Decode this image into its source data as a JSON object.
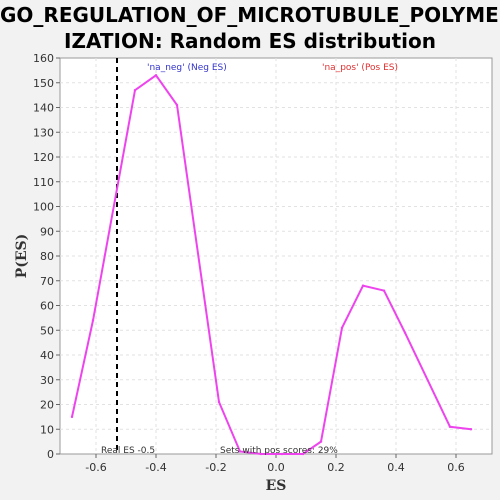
{
  "chart_data": {
    "type": "line",
    "title_line1": "GO_REGULATION_OF_MICROTUBULE_POLYMER",
    "title_line2": "IZATION: Random ES distribution",
    "xlabel": "ES",
    "ylabel": "P(ES)",
    "xlim": [
      -0.72,
      0.72
    ],
    "ylim": [
      0,
      160
    ],
    "xticks": [
      -0.6,
      -0.4,
      -0.2,
      0.0,
      0.2,
      0.4,
      0.6
    ],
    "xtick_labels": [
      "-0.6",
      "-0.4",
      "-0.2",
      "0.0",
      "0.2",
      "0.4",
      "0.6"
    ],
    "yticks": [
      0,
      10,
      20,
      30,
      40,
      50,
      60,
      70,
      80,
      90,
      100,
      110,
      120,
      130,
      140,
      150,
      160
    ],
    "grid": true,
    "series": [
      {
        "color": "#ee44ee",
        "x": [
          -0.68,
          -0.61,
          -0.47,
          -0.4,
          -0.33,
          -0.19,
          -0.12,
          -0.05,
          0.02,
          0.09,
          0.15,
          0.22,
          0.29,
          0.36,
          0.43,
          0.58,
          0.65
        ],
        "y": [
          15,
          54,
          147,
          153,
          141,
          21,
          1,
          0,
          0,
          0,
          5,
          51,
          68,
          66,
          49,
          11,
          10
        ]
      }
    ],
    "real_es": -0.53,
    "legend_neg": "'na_neg' (Neg ES)",
    "legend_pos": "'na_pos' (Pos ES)",
    "real_es_label": "Real ES -0.5",
    "pos_scores_label": "Sets with pos scores: 29%"
  }
}
